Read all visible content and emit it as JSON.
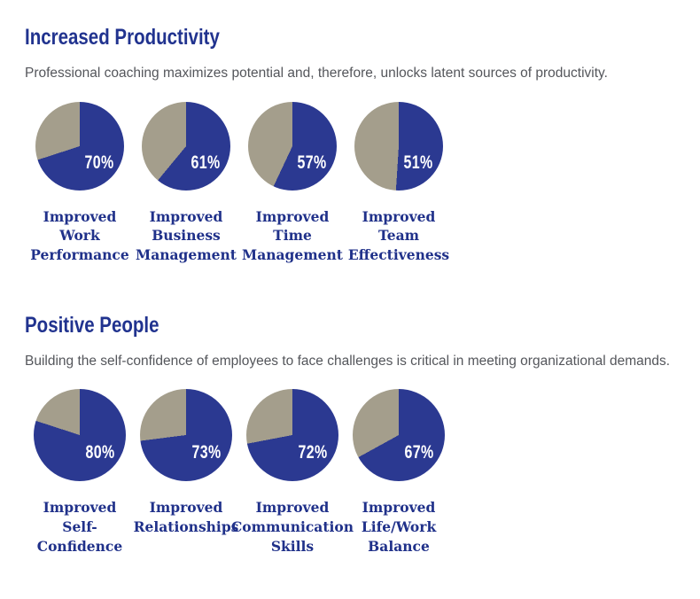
{
  "colors": {
    "pie_fill": "#2b3991",
    "pie_remainder": "#a49e8c",
    "heading_text": "#21338f",
    "pie_label_text": "#20318a",
    "body_text": "#54565b",
    "percent_text": "#ffffff"
  },
  "chart_data": [
    {
      "type": "pie",
      "title": "Increased Productivity",
      "subtitle": "Professional coaching maximizes potential and, therefore, unlocks latent sources of productivity.",
      "unit": "%",
      "legend": "none",
      "slice_order": "value-from-12-oclock-clockwise",
      "pies": [
        {
          "label": "Improved\nWork\nPerformance",
          "value": 70,
          "value_label": "70%",
          "remainder": 30
        },
        {
          "label": "Improved\nBusiness\nManagement",
          "value": 61,
          "value_label": "61%",
          "remainder": 39
        },
        {
          "label": "Improved\nTime\nManagement",
          "value": 57,
          "value_label": "57%",
          "remainder": 43
        },
        {
          "label": "Improved\nTeam\nEffectiveness",
          "value": 51,
          "value_label": "51%",
          "remainder": 49
        }
      ]
    },
    {
      "type": "pie",
      "title": "Positive People",
      "subtitle": "Building the self-confidence of employees to face challenges is critical in meeting organizational demands.",
      "unit": "%",
      "legend": "none",
      "slice_order": "value-from-12-oclock-clockwise",
      "pies": [
        {
          "label": "Improved\nSelf-\nConfidence",
          "value": 80,
          "value_label": "80%",
          "remainder": 20
        },
        {
          "label": "Improved\nRelationships",
          "value": 73,
          "value_label": "73%",
          "remainder": 27
        },
        {
          "label": "Improved\nCommunication\nSkills",
          "value": 72,
          "value_label": "72%",
          "remainder": 28
        },
        {
          "label": "Improved\nLife/Work\nBalance",
          "value": 67,
          "value_label": "67%",
          "remainder": 33
        }
      ]
    }
  ]
}
